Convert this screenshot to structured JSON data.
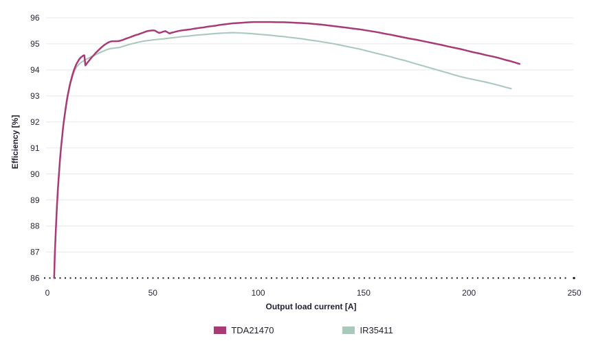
{
  "chart_data": {
    "type": "line",
    "title": "",
    "xlabel": "Output load current [A]",
    "ylabel": "Efficiency [%]",
    "xlim": [
      0,
      250
    ],
    "ylim": [
      86,
      96
    ],
    "x_ticks": [
      0,
      50,
      100,
      150,
      200,
      250
    ],
    "y_ticks": [
      86,
      87,
      88,
      89,
      90,
      91,
      92,
      93,
      94,
      95,
      96
    ],
    "grid": "horizontal",
    "grid_color": "#e8e8e8",
    "baseline_style": "dotted",
    "baseline_color": "#141414",
    "text_color": "#26263a",
    "legend_position": "bottom-center",
    "series": [
      {
        "name": "TDA21470",
        "color": "#a83a76",
        "points": [
          [
            3.2,
            86.0
          ],
          [
            3.5,
            86.9
          ],
          [
            4,
            87.9
          ],
          [
            4.5,
            88.75
          ],
          [
            5,
            89.45
          ],
          [
            5.5,
            90.05
          ],
          [
            6,
            90.6
          ],
          [
            6.5,
            91.05
          ],
          [
            7,
            91.45
          ],
          [
            7.5,
            91.85
          ],
          [
            8,
            92.15
          ],
          [
            8.5,
            92.45
          ],
          [
            9,
            92.72
          ],
          [
            9.5,
            92.97
          ],
          [
            10,
            93.18
          ],
          [
            10.5,
            93.38
          ],
          [
            11,
            93.55
          ],
          [
            11.5,
            93.7
          ],
          [
            12,
            93.85
          ],
          [
            12.5,
            93.97
          ],
          [
            13,
            94.08
          ],
          [
            13.5,
            94.18
          ],
          [
            14,
            94.26
          ],
          [
            14.5,
            94.33
          ],
          [
            15,
            94.4
          ],
          [
            15.5,
            94.45
          ],
          [
            16,
            94.49
          ],
          [
            16.5,
            94.52
          ],
          [
            17,
            94.55
          ],
          [
            17.5,
            94.56
          ],
          [
            18,
            94.17
          ],
          [
            19,
            94.28
          ],
          [
            20,
            94.38
          ],
          [
            21,
            94.48
          ],
          [
            22,
            94.57
          ],
          [
            23,
            94.66
          ],
          [
            24,
            94.74
          ],
          [
            25,
            94.82
          ],
          [
            26,
            94.89
          ],
          [
            27,
            94.96
          ],
          [
            28,
            95.01
          ],
          [
            29,
            95.06
          ],
          [
            30,
            95.09
          ],
          [
            31,
            95.1
          ],
          [
            32,
            95.1
          ],
          [
            33,
            95.1
          ],
          [
            34,
            95.11
          ],
          [
            35,
            95.13
          ],
          [
            36,
            95.16
          ],
          [
            37,
            95.19
          ],
          [
            38,
            95.22
          ],
          [
            39,
            95.25
          ],
          [
            40,
            95.28
          ],
          [
            41,
            95.31
          ],
          [
            42,
            95.34
          ],
          [
            43,
            95.36
          ],
          [
            44,
            95.39
          ],
          [
            45,
            95.42
          ],
          [
            46,
            95.45
          ],
          [
            47,
            95.48
          ],
          [
            48,
            95.5
          ],
          [
            49,
            95.51
          ],
          [
            50,
            95.52
          ],
          [
            51,
            95.51
          ],
          [
            52,
            95.46
          ],
          [
            53,
            95.42
          ],
          [
            54,
            95.44
          ],
          [
            55,
            95.47
          ],
          [
            56,
            95.49
          ],
          [
            57,
            95.44
          ],
          [
            58,
            95.4
          ],
          [
            59,
            95.43
          ],
          [
            60,
            95.45
          ],
          [
            62,
            95.49
          ],
          [
            64,
            95.52
          ],
          [
            66,
            95.54
          ],
          [
            68,
            95.56
          ],
          [
            70,
            95.59
          ],
          [
            72,
            95.61
          ],
          [
            74,
            95.63
          ],
          [
            76,
            95.66
          ],
          [
            78,
            95.68
          ],
          [
            80,
            95.7
          ],
          [
            82,
            95.73
          ],
          [
            84,
            95.75
          ],
          [
            86,
            95.77
          ],
          [
            88,
            95.79
          ],
          [
            90,
            95.8
          ],
          [
            92,
            95.81
          ],
          [
            94,
            95.82
          ],
          [
            96,
            95.83
          ],
          [
            98,
            95.84
          ],
          [
            100,
            95.84
          ],
          [
            103,
            95.84
          ],
          [
            106,
            95.84
          ],
          [
            109,
            95.83
          ],
          [
            112,
            95.83
          ],
          [
            115,
            95.82
          ],
          [
            118,
            95.81
          ],
          [
            121,
            95.8
          ],
          [
            124,
            95.78
          ],
          [
            127,
            95.76
          ],
          [
            130,
            95.74
          ],
          [
            133,
            95.71
          ],
          [
            136,
            95.68
          ],
          [
            139,
            95.65
          ],
          [
            142,
            95.62
          ],
          [
            145,
            95.59
          ],
          [
            148,
            95.56
          ],
          [
            151,
            95.52
          ],
          [
            154,
            95.48
          ],
          [
            157,
            95.44
          ],
          [
            160,
            95.39
          ],
          [
            163,
            95.35
          ],
          [
            166,
            95.3
          ],
          [
            169,
            95.25
          ],
          [
            172,
            95.2
          ],
          [
            175,
            95.16
          ],
          [
            178,
            95.11
          ],
          [
            181,
            95.06
          ],
          [
            184,
            95.01
          ],
          [
            187,
            94.96
          ],
          [
            190,
            94.9
          ],
          [
            193,
            94.85
          ],
          [
            196,
            94.8
          ],
          [
            199,
            94.74
          ],
          [
            202,
            94.68
          ],
          [
            205,
            94.63
          ],
          [
            208,
            94.57
          ],
          [
            211,
            94.52
          ],
          [
            214,
            94.46
          ],
          [
            217,
            94.39
          ],
          [
            220,
            94.33
          ],
          [
            222,
            94.28
          ],
          [
            224,
            94.23
          ]
        ]
      },
      {
        "name": "IR35411",
        "color": "#a9c9ba",
        "points": [
          [
            3.2,
            86.0
          ],
          [
            3.5,
            86.85
          ],
          [
            4,
            87.85
          ],
          [
            4.5,
            88.7
          ],
          [
            5,
            89.4
          ],
          [
            5.5,
            90.0
          ],
          [
            6,
            90.55
          ],
          [
            6.5,
            91.0
          ],
          [
            7,
            91.4
          ],
          [
            7.5,
            91.8
          ],
          [
            8,
            92.1
          ],
          [
            8.5,
            92.4
          ],
          [
            9,
            92.67
          ],
          [
            9.5,
            92.92
          ],
          [
            10,
            93.13
          ],
          [
            10.5,
            93.32
          ],
          [
            11,
            93.48
          ],
          [
            11.5,
            93.63
          ],
          [
            12,
            93.76
          ],
          [
            12.5,
            93.88
          ],
          [
            13,
            93.98
          ],
          [
            13.5,
            94.06
          ],
          [
            14,
            94.13
          ],
          [
            15,
            94.22
          ],
          [
            16,
            94.29
          ],
          [
            17,
            94.34
          ],
          [
            18,
            94.39
          ],
          [
            19,
            94.43
          ],
          [
            20,
            94.47
          ],
          [
            21,
            94.51
          ],
          [
            22,
            94.55
          ],
          [
            23,
            94.59
          ],
          [
            24,
            94.63
          ],
          [
            25,
            94.67
          ],
          [
            26,
            94.7
          ],
          [
            27,
            94.74
          ],
          [
            28,
            94.77
          ],
          [
            29,
            94.8
          ],
          [
            30,
            94.82
          ],
          [
            31,
            94.83
          ],
          [
            32,
            94.84
          ],
          [
            33,
            94.85
          ],
          [
            34,
            94.86
          ],
          [
            35,
            94.88
          ],
          [
            36,
            94.91
          ],
          [
            37,
            94.93
          ],
          [
            38,
            94.96
          ],
          [
            39,
            94.98
          ],
          [
            40,
            95.0
          ],
          [
            42,
            95.04
          ],
          [
            44,
            95.08
          ],
          [
            46,
            95.11
          ],
          [
            48,
            95.13
          ],
          [
            50,
            95.15
          ],
          [
            52,
            95.17
          ],
          [
            55,
            95.19
          ],
          [
            58,
            95.22
          ],
          [
            61,
            95.25
          ],
          [
            64,
            95.28
          ],
          [
            67,
            95.3
          ],
          [
            70,
            95.33
          ],
          [
            73,
            95.35
          ],
          [
            76,
            95.37
          ],
          [
            79,
            95.39
          ],
          [
            82,
            95.41
          ],
          [
            85,
            95.42
          ],
          [
            88,
            95.43
          ],
          [
            91,
            95.42
          ],
          [
            94,
            95.41
          ],
          [
            97,
            95.39
          ],
          [
            100,
            95.37
          ],
          [
            103,
            95.35
          ],
          [
            106,
            95.33
          ],
          [
            109,
            95.3
          ],
          [
            112,
            95.28
          ],
          [
            115,
            95.25
          ],
          [
            118,
            95.22
          ],
          [
            121,
            95.19
          ],
          [
            124,
            95.15
          ],
          [
            127,
            95.12
          ],
          [
            130,
            95.08
          ],
          [
            133,
            95.04
          ],
          [
            136,
            95.0
          ],
          [
            139,
            94.95
          ],
          [
            142,
            94.9
          ],
          [
            145,
            94.85
          ],
          [
            148,
            94.8
          ],
          [
            151,
            94.74
          ],
          [
            154,
            94.68
          ],
          [
            157,
            94.62
          ],
          [
            160,
            94.56
          ],
          [
            163,
            94.5
          ],
          [
            166,
            94.43
          ],
          [
            169,
            94.37
          ],
          [
            172,
            94.3
          ],
          [
            175,
            94.23
          ],
          [
            178,
            94.16
          ],
          [
            181,
            94.09
          ],
          [
            184,
            94.02
          ],
          [
            187,
            93.95
          ],
          [
            190,
            93.88
          ],
          [
            193,
            93.81
          ],
          [
            196,
            93.74
          ],
          [
            199,
            93.68
          ],
          [
            202,
            93.63
          ],
          [
            205,
            93.58
          ],
          [
            208,
            93.53
          ],
          [
            211,
            93.47
          ],
          [
            214,
            93.41
          ],
          [
            217,
            93.34
          ],
          [
            220,
            93.28
          ]
        ]
      }
    ]
  }
}
